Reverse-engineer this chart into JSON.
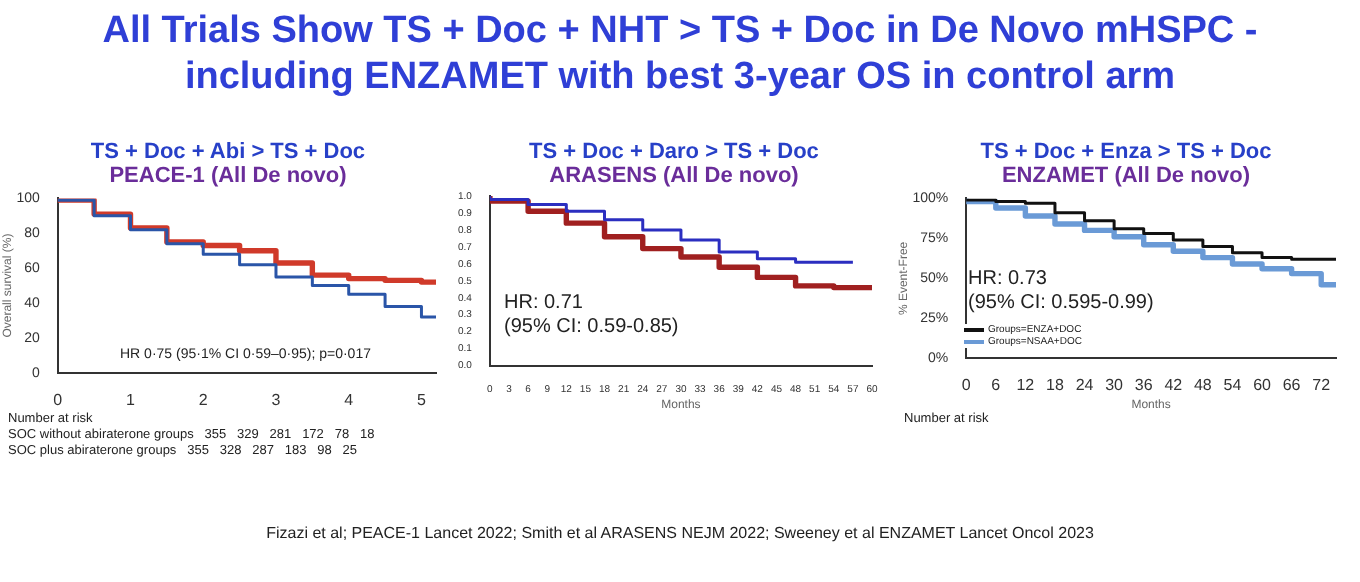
{
  "chart_data": [
    {
      "type": "other",
      "title": "All Trials Show TS + Doc + NHT > TS + Doc in De Novo mHSPC - including ENZAMET with best 3-year OS in control arm",
      "annotations": [
        "Fizazi et al; PEACE-1 Lancet 2022; Smith et al ARASENS NEJM 2022; Sweeney et al ENZAMET Lancet Oncol 2023"
      ]
    },
    {
      "type": "step",
      "title": "TS + Doc + Abi > TS + Doc",
      "subtitle": "PEACE-1 (All De novo)",
      "ylabel": "Overall survival (%)",
      "xlim": [
        0,
        5.2
      ],
      "xticks": [
        0,
        1,
        2,
        3,
        4,
        5
      ],
      "ylim": [
        0,
        100
      ],
      "yticks": [
        0,
        20,
        40,
        60,
        80,
        100
      ],
      "grid": false,
      "legend": false,
      "marker": "none",
      "annotations": [
        "HR 0·75 (95·1% CI 0·59–0·95); p=0·017",
        "Number at risk",
        "SOC without abiraterone groups   355   329   281   172   78   18",
        "SOC plus abiraterone groups   355   328   287   183   98   25"
      ],
      "series": [
        {
          "color": "#2a55a8",
          "x": [
            0,
            0.5,
            1,
            1.5,
            2,
            2.5,
            3,
            3.5,
            4,
            4.5,
            5,
            5.2
          ],
          "values": [
            100,
            99,
            90,
            82,
            74,
            68,
            62,
            55,
            50,
            45,
            38,
            32
          ]
        },
        {
          "color": "#d03a2a",
          "x": [
            0,
            0.5,
            1,
            1.5,
            2,
            2.5,
            3,
            3.5,
            4,
            4.5,
            5,
            5.2
          ],
          "values": [
            100,
            99,
            91,
            83,
            75,
            73,
            70,
            63,
            56,
            54,
            53,
            52
          ]
        }
      ]
    },
    {
      "type": "step",
      "title": "TS + Doc + Daro > TS + Doc",
      "subtitle": "ARASENS (All De novo)",
      "xlabel": "Months",
      "xlim": [
        0,
        60
      ],
      "xticks": [
        0,
        3,
        6,
        9,
        12,
        15,
        18,
        21,
        24,
        27,
        30,
        33,
        36,
        39,
        42,
        45,
        48,
        51,
        54,
        57,
        60
      ],
      "ylim": [
        0,
        1
      ],
      "yticks": [
        {
          "value": 0,
          "label": "0.0"
        },
        0.1,
        0.2,
        0.3,
        0.4,
        0.5,
        0.6,
        0.7,
        0.8,
        0.9,
        {
          "value": 1,
          "label": "1.0"
        }
      ],
      "grid": false,
      "legend": false,
      "marker": "none",
      "annotations": [
        "HR: 0.71",
        "(95% CI: 0.59-0.85)"
      ],
      "series": [
        {
          "color": "#2b2ec0",
          "x": [
            0,
            6,
            12,
            18,
            24,
            30,
            36,
            42,
            48,
            54,
            57
          ],
          "values": [
            1,
            0.98,
            0.95,
            0.91,
            0.86,
            0.8,
            0.74,
            0.67,
            0.63,
            0.61,
            0.61
          ]
        },
        {
          "color": "#a02020",
          "x": [
            0,
            6,
            12,
            18,
            24,
            30,
            36,
            42,
            48,
            54,
            57,
            60
          ],
          "values": [
            1,
            0.97,
            0.91,
            0.84,
            0.76,
            0.69,
            0.64,
            0.58,
            0.52,
            0.47,
            0.46,
            0.46
          ]
        }
      ]
    },
    {
      "type": "step",
      "title": "TS + Doc + Enza > TS + Doc",
      "subtitle": "ENZAMET (All De novo)",
      "xlabel": "Months",
      "ylabel": "% Event-Free",
      "xlim": [
        0,
        75
      ],
      "xticks": [
        0,
        6,
        12,
        18,
        24,
        30,
        36,
        42,
        48,
        54,
        60,
        66,
        72
      ],
      "ylim": [
        0,
        100
      ],
      "yticks": [
        {
          "value": 0,
          "label": "0%"
        },
        {
          "value": 25,
          "label": "25%"
        },
        {
          "value": 50,
          "label": "50%"
        },
        {
          "value": 75,
          "label": "75%"
        },
        {
          "value": 100,
          "label": "100%"
        }
      ],
      "grid": false,
      "legend": "bottom left",
      "marker": "none",
      "annotations": [
        "HR: 0.73",
        "(95% CI: 0.595-0.99)",
        "Number at risk"
      ],
      "series": [
        {
          "name": "Groups=ENZA+DOC",
          "color": "#111111",
          "x": [
            0,
            6,
            12,
            18,
            24,
            30,
            36,
            42,
            48,
            54,
            60,
            66,
            72,
            75
          ],
          "values": [
            100,
            99,
            98,
            97,
            91,
            86,
            81,
            78,
            74,
            70,
            66,
            63,
            62,
            62
          ]
        },
        {
          "name": "Groups=NSAA+DOC",
          "color": "#6a9ad6",
          "x": [
            0,
            6,
            12,
            18,
            24,
            30,
            36,
            42,
            48,
            54,
            60,
            66,
            72,
            75
          ],
          "values": [
            100,
            98,
            94,
            89,
            84,
            80,
            76,
            71,
            67,
            63,
            59,
            56,
            53,
            46
          ]
        }
      ]
    }
  ]
}
